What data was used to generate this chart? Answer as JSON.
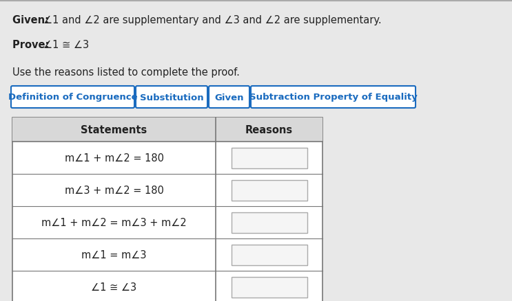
{
  "background_color": "#d8d8d8",
  "white_bg": "#ffffff",
  "given_label": "Given: ",
  "given_rest": "∠1 and ∠2 are supplementary and ∠3 and ∠2 are supplementary.",
  "prove_label": "Prove: ",
  "prove_rest": "∠1 ≅ ∠3",
  "instruction_text": "Use the reasons listed to complete the proof.",
  "button_labels": [
    "Definition of Congruence",
    "Substitution",
    "Given",
    "Subtraction Property of Equality"
  ],
  "button_color": "#1a6bbf",
  "button_bg": "#ffffff",
  "table_header": [
    "Statements",
    "Reasons"
  ],
  "table_rows": [
    "m∠1 + m∠2 = 180",
    "m∠3 + m∠2 = 180",
    "m∠1 + m∠2 = m∠3 + m∠2",
    "m∠1 = m∠3",
    "∠1 ≅ ∠3"
  ],
  "text_color": "#222222",
  "table_border_color": "#777777",
  "inner_box_color": "#aaaaaa",
  "inner_box_fill": "#f5f5f5",
  "header_bg": "#cccccc",
  "fontsize": 10.5,
  "btn_fontsize": 9.5
}
